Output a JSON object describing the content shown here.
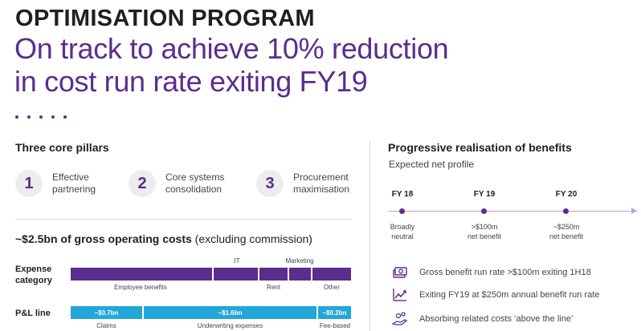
{
  "header": {
    "title": "OPTIMISATION PROGRAM",
    "headline_line1": "On track to achieve 10% reduction",
    "headline_line2": "in cost run rate exiting FY19"
  },
  "pillars": {
    "heading": "Three core pillars",
    "items": [
      {
        "number": "1",
        "line1": "Effective",
        "line2": "partnering"
      },
      {
        "number": "2",
        "line1": "Core systems",
        "line2": "consolidation"
      },
      {
        "number": "3",
        "line1": "Procurement",
        "line2": "maximisation"
      }
    ]
  },
  "costs": {
    "heading_bold": "~$2.5bn of gross operating costs",
    "heading_rest": " (excluding commission)",
    "expense_label_1": "Expense",
    "expense_label_2": "category",
    "expense_segments": [
      "Employee benefits",
      "IT",
      "Rent",
      "Marketing",
      "Other"
    ],
    "pl_label": "P&L line",
    "pl_segments": [
      {
        "value": "~$0.7bn",
        "label": "Claims"
      },
      {
        "value": "~$1.6bn",
        "label": "Underwriting expenses"
      },
      {
        "value": "~$0.2bn",
        "label": "Fee-based"
      }
    ]
  },
  "benefits": {
    "heading": "Progressive realisation of benefits",
    "subheading": "Expected net profile",
    "timeline": [
      {
        "year": "FY 18",
        "line1": "Broadly",
        "line2": "neutral"
      },
      {
        "year": "FY 19",
        "line1": ">$100m",
        "line2": "net benefit"
      },
      {
        "year": "FY 20",
        "line1": "~$250m",
        "line2": "net benefit"
      }
    ],
    "bullets": [
      {
        "icon": "money-stack-icon",
        "text": "Gross benefit run rate >$100m exiting 1H18"
      },
      {
        "icon": "chart-trend-icon",
        "text": "Exiting FY19 at $250m annual benefit run rate"
      },
      {
        "icon": "hand-coins-icon",
        "text": "Absorbing related costs ‘above the line’"
      }
    ]
  },
  "colors": {
    "accent": "#5b2d8e",
    "teal": "#22a7d8"
  }
}
